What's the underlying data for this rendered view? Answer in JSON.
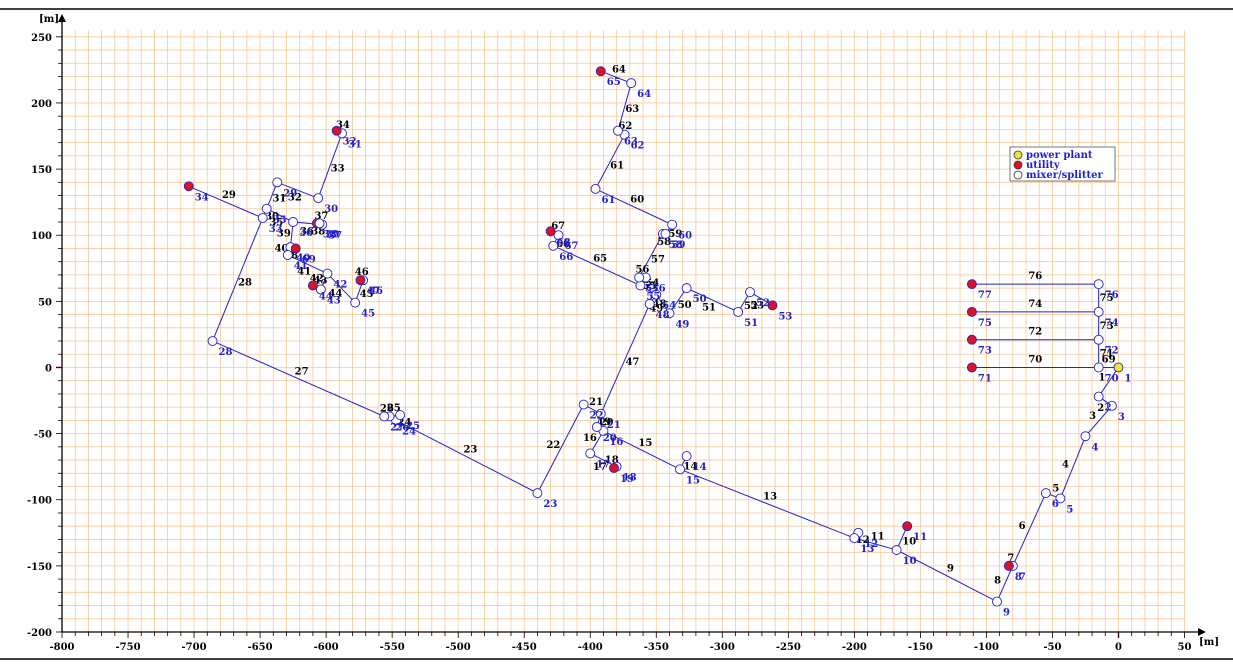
{
  "axes": {
    "x_unit": "[m]",
    "y_unit": "[m]",
    "x_ticks": [
      -800,
      -750,
      -700,
      -650,
      -600,
      -550,
      -500,
      -450,
      -400,
      -350,
      -300,
      -250,
      -200,
      -150,
      -100,
      -50,
      0,
      50
    ],
    "y_ticks": [
      -200,
      -150,
      -100,
      -50,
      0,
      50,
      100,
      150,
      200,
      250
    ],
    "xlim": [
      -800,
      53
    ],
    "ylim": [
      -200,
      255
    ],
    "grid_minor": 10,
    "grid_color": "#f6c89a",
    "line_color": "#2222cc"
  },
  "legend": {
    "items": [
      {
        "label": "power plant",
        "color": "#f2e23a"
      },
      {
        "label": "utility",
        "color": "#dd1122"
      },
      {
        "label": "mixer/splitter",
        "color": "#ffffff"
      }
    ]
  },
  "chart_data": {
    "type": "scatter",
    "nodes": [
      {
        "id": "1",
        "x": 0,
        "y": 0,
        "kind": "plant"
      },
      {
        "id": "2",
        "x": -15,
        "y": -22,
        "kind": "mixer"
      },
      {
        "id": "3",
        "x": -5,
        "y": -29,
        "kind": "mixer"
      },
      {
        "id": "4",
        "x": -25,
        "y": -52,
        "kind": "mixer"
      },
      {
        "id": "5",
        "x": -44,
        "y": -99,
        "kind": "mixer"
      },
      {
        "id": "6",
        "x": -55,
        "y": -95,
        "kind": "mixer"
      },
      {
        "id": "7",
        "x": -80,
        "y": -150,
        "kind": "mixer"
      },
      {
        "id": "8",
        "x": -83,
        "y": -150,
        "kind": "utility"
      },
      {
        "id": "9",
        "x": -92,
        "y": -177,
        "kind": "mixer"
      },
      {
        "id": "10",
        "x": -168,
        "y": -138,
        "kind": "mixer"
      },
      {
        "id": "11",
        "x": -160,
        "y": -120,
        "kind": "utility"
      },
      {
        "id": "12",
        "x": -197,
        "y": -125,
        "kind": "mixer"
      },
      {
        "id": "13",
        "x": -200,
        "y": -129,
        "kind": "mixer"
      },
      {
        "id": "14",
        "x": -327,
        "y": -67,
        "kind": "mixer"
      },
      {
        "id": "15",
        "x": -332,
        "y": -77,
        "kind": "mixer"
      },
      {
        "id": "16",
        "x": -390,
        "y": -48,
        "kind": "mixer"
      },
      {
        "id": "17",
        "x": -400,
        "y": -65,
        "kind": "mixer"
      },
      {
        "id": "18",
        "x": -380,
        "y": -75,
        "kind": "mixer"
      },
      {
        "id": "19",
        "x": -382,
        "y": -76,
        "kind": "utility"
      },
      {
        "id": "20",
        "x": -395,
        "y": -45,
        "kind": "mixer"
      },
      {
        "id": "21",
        "x": -392,
        "y": -35,
        "kind": "mixer"
      },
      {
        "id": "22",
        "x": -405,
        "y": -28,
        "kind": "mixer"
      },
      {
        "id": "23",
        "x": -440,
        "y": -95,
        "kind": "mixer"
      },
      {
        "id": "24",
        "x": -547,
        "y": -40,
        "kind": "mixer"
      },
      {
        "id": "25",
        "x": -544,
        "y": -36,
        "kind": "mixer"
      },
      {
        "id": "26",
        "x": -552,
        "y": -37,
        "kind": "mixer"
      },
      {
        "id": "27",
        "x": -556,
        "y": -37,
        "kind": "mixer"
      },
      {
        "id": "28",
        "x": -686,
        "y": 20,
        "kind": "mixer"
      },
      {
        "id": "29",
        "x": -637,
        "y": 140,
        "kind": "mixer"
      },
      {
        "id": "30",
        "x": -606,
        "y": 128,
        "kind": "mixer"
      },
      {
        "id": "31",
        "x": -588,
        "y": 177,
        "kind": "mixer"
      },
      {
        "id": "32",
        "x": -592,
        "y": 179,
        "kind": "utility"
      },
      {
        "id": "33",
        "x": -648,
        "y": 113,
        "kind": "mixer"
      },
      {
        "id": "34",
        "x": -704,
        "y": 137,
        "kind": "utility"
      },
      {
        "id": "35",
        "x": -645,
        "y": 120,
        "kind": "mixer"
      },
      {
        "id": "36",
        "x": -625,
        "y": 110,
        "kind": "mixer"
      },
      {
        "id": "37",
        "x": -603,
        "y": 108,
        "kind": "mixer"
      },
      {
        "id": "38",
        "x": -607,
        "y": 109,
        "kind": "utility"
      },
      {
        "id": "39",
        "x": -605,
        "y": 109,
        "kind": "mixer"
      },
      {
        "id": "40",
        "x": -627,
        "y": 91,
        "kind": "mixer"
      },
      {
        "id": "41",
        "x": -629,
        "y": 85,
        "kind": "mixer"
      },
      {
        "id": "42",
        "x": -599,
        "y": 71,
        "kind": "mixer"
      },
      {
        "id": "43",
        "x": -604,
        "y": 59,
        "kind": "mixer"
      },
      {
        "id": "44",
        "x": -610,
        "y": 62,
        "kind": "utility"
      },
      {
        "id": "45",
        "x": -578,
        "y": 49,
        "kind": "mixer"
      },
      {
        "id": "46",
        "x": -572,
        "y": 66,
        "kind": "mixer"
      },
      {
        "id": "47",
        "x": -574,
        "y": 66,
        "kind": "utility"
      },
      {
        "id": "48",
        "x": -355,
        "y": 48,
        "kind": "mixer"
      },
      {
        "id": "49",
        "x": -340,
        "y": 41,
        "kind": "mixer"
      },
      {
        "id": "50",
        "x": -327,
        "y": 60,
        "kind": "mixer"
      },
      {
        "id": "51",
        "x": -288,
        "y": 42,
        "kind": "mixer"
      },
      {
        "id": "52",
        "x": -279,
        "y": 57,
        "kind": "mixer"
      },
      {
        "id": "53",
        "x": -262,
        "y": 47,
        "kind": "utility"
      },
      {
        "id": "54",
        "x": -350,
        "y": 55,
        "kind": "mixer"
      },
      {
        "id": "55",
        "x": -362,
        "y": 62,
        "kind": "mixer"
      },
      {
        "id": "56",
        "x": -358,
        "y": 68,
        "kind": "mixer"
      },
      {
        "id": "57",
        "x": -363,
        "y": 68,
        "kind": "mixer"
      },
      {
        "id": "58",
        "x": -345,
        "y": 101,
        "kind": "mixer"
      },
      {
        "id": "59",
        "x": -343,
        "y": 101,
        "kind": "mixer"
      },
      {
        "id": "60",
        "x": -338,
        "y": 108,
        "kind": "mixer"
      },
      {
        "id": "61",
        "x": -396,
        "y": 135,
        "kind": "mixer"
      },
      {
        "id": "62",
        "x": -374,
        "y": 176,
        "kind": "mixer"
      },
      {
        "id": "63",
        "x": -379,
        "y": 179,
        "kind": "mixer"
      },
      {
        "id": "64",
        "x": -369,
        "y": 215,
        "kind": "mixer"
      },
      {
        "id": "65",
        "x": -392,
        "y": 224,
        "kind": "utility"
      },
      {
        "id": "66",
        "x": -428,
        "y": 92,
        "kind": "mixer"
      },
      {
        "id": "67",
        "x": -424,
        "y": 100,
        "kind": "mixer"
      },
      {
        "id": "68",
        "x": -430,
        "y": 103,
        "kind": "utility"
      },
      {
        "id": "69",
        "x": -623,
        "y": 90,
        "kind": "utility"
      },
      {
        "id": "70",
        "x": -15,
        "y": 0,
        "kind": "mixer"
      },
      {
        "id": "71",
        "x": -111,
        "y": 0,
        "kind": "utility"
      },
      {
        "id": "72",
        "x": -15,
        "y": 21,
        "kind": "mixer"
      },
      {
        "id": "73",
        "x": -111,
        "y": 21,
        "kind": "utility"
      },
      {
        "id": "74",
        "x": -15,
        "y": 42,
        "kind": "mixer"
      },
      {
        "id": "75",
        "x": -111,
        "y": 42,
        "kind": "utility"
      },
      {
        "id": "76",
        "x": -15,
        "y": 63,
        "kind": "mixer"
      },
      {
        "id": "77",
        "x": -111,
        "y": 63,
        "kind": "utility"
      }
    ],
    "edges": [
      {
        "id": "1",
        "from": "1",
        "to": "2"
      },
      {
        "id": "2",
        "from": "2",
        "to": "3"
      },
      {
        "id": "3",
        "from": "3",
        "to": "4"
      },
      {
        "id": "4",
        "from": "4",
        "to": "5"
      },
      {
        "id": "5",
        "from": "5",
        "to": "6"
      },
      {
        "id": "6",
        "from": "6",
        "to": "7"
      },
      {
        "id": "7",
        "from": "7",
        "to": "8"
      },
      {
        "id": "8",
        "from": "7",
        "to": "9"
      },
      {
        "id": "9",
        "from": "9",
        "to": "10"
      },
      {
        "id": "10",
        "from": "10",
        "to": "11"
      },
      {
        "id": "11",
        "from": "10",
        "to": "13"
      },
      {
        "id": "12",
        "from": "13",
        "to": "12"
      },
      {
        "id": "13",
        "from": "13",
        "to": "15"
      },
      {
        "id": "14",
        "from": "15",
        "to": "14"
      },
      {
        "id": "15",
        "from": "15",
        "to": "16"
      },
      {
        "id": "16",
        "from": "16",
        "to": "17"
      },
      {
        "id": "17",
        "from": "17",
        "to": "18"
      },
      {
        "id": "18",
        "from": "18",
        "to": "19"
      },
      {
        "id": "19",
        "from": "16",
        "to": "20"
      },
      {
        "id": "20",
        "from": "20",
        "to": "21"
      },
      {
        "id": "21",
        "from": "21",
        "to": "22"
      },
      {
        "id": "22",
        "from": "22",
        "to": "23"
      },
      {
        "id": "23",
        "from": "23",
        "to": "24"
      },
      {
        "id": "24",
        "from": "24",
        "to": "25"
      },
      {
        "id": "25",
        "from": "25",
        "to": "26"
      },
      {
        "id": "26",
        "from": "26",
        "to": "27"
      },
      {
        "id": "27",
        "from": "27",
        "to": "28"
      },
      {
        "id": "28",
        "from": "28",
        "to": "33"
      },
      {
        "id": "29",
        "from": "33",
        "to": "34"
      },
      {
        "id": "30",
        "from": "33",
        "to": "35"
      },
      {
        "id": "31",
        "from": "35",
        "to": "29"
      },
      {
        "id": "32",
        "from": "29",
        "to": "30"
      },
      {
        "id": "33",
        "from": "30",
        "to": "31"
      },
      {
        "id": "34",
        "from": "31",
        "to": "32"
      },
      {
        "id": "35",
        "from": "35",
        "to": "36"
      },
      {
        "id": "36",
        "from": "36",
        "to": "37"
      },
      {
        "id": "37",
        "from": "37",
        "to": "38"
      },
      {
        "id": "38",
        "from": "38",
        "to": "39"
      },
      {
        "id": "39",
        "from": "36",
        "to": "40"
      },
      {
        "id": "40",
        "from": "40",
        "to": "41"
      },
      {
        "id": "41",
        "from": "41",
        "to": "42"
      },
      {
        "id": "42",
        "from": "42",
        "to": "43"
      },
      {
        "id": "43",
        "from": "43",
        "to": "44"
      },
      {
        "id": "44",
        "from": "42",
        "to": "45"
      },
      {
        "id": "45",
        "from": "45",
        "to": "46"
      },
      {
        "id": "46",
        "from": "46",
        "to": "47"
      },
      {
        "id": "47",
        "from": "21",
        "to": "48"
      },
      {
        "id": "48",
        "from": "48",
        "to": "54"
      },
      {
        "id": "49",
        "from": "54",
        "to": "49"
      },
      {
        "id": "50",
        "from": "49",
        "to": "50"
      },
      {
        "id": "51",
        "from": "50",
        "to": "51"
      },
      {
        "id": "52",
        "from": "51",
        "to": "52"
      },
      {
        "id": "53",
        "from": "52",
        "to": "53"
      },
      {
        "id": "54",
        "from": "54",
        "to": "55"
      },
      {
        "id": "55",
        "from": "55",
        "to": "56"
      },
      {
        "id": "56",
        "from": "56",
        "to": "57"
      },
      {
        "id": "57",
        "from": "57",
        "to": "58"
      },
      {
        "id": "58",
        "from": "58",
        "to": "59"
      },
      {
        "id": "59",
        "from": "59",
        "to": "60"
      },
      {
        "id": "60",
        "from": "60",
        "to": "61"
      },
      {
        "id": "61",
        "from": "61",
        "to": "62"
      },
      {
        "id": "62",
        "from": "62",
        "to": "63"
      },
      {
        "id": "63",
        "from": "63",
        "to": "64"
      },
      {
        "id": "64",
        "from": "64",
        "to": "65"
      },
      {
        "id": "65",
        "from": "55",
        "to": "66"
      },
      {
        "id": "66",
        "from": "66",
        "to": "67"
      },
      {
        "id": "67",
        "from": "67",
        "to": "68"
      },
      {
        "id": "68",
        "from": "40",
        "to": "69"
      },
      {
        "id": "69",
        "from": "1",
        "to": "70"
      },
      {
        "id": "70",
        "from": "70",
        "to": "71"
      },
      {
        "id": "71",
        "from": "70",
        "to": "72"
      },
      {
        "id": "72",
        "from": "72",
        "to": "73"
      },
      {
        "id": "73",
        "from": "72",
        "to": "74"
      },
      {
        "id": "74",
        "from": "74",
        "to": "75"
      },
      {
        "id": "75",
        "from": "74",
        "to": "76"
      },
      {
        "id": "76",
        "from": "76",
        "to": "77"
      }
    ]
  }
}
